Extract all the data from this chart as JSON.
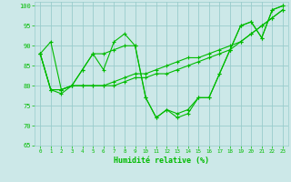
{
  "xlabel": "Humidité relative (%)",
  "xlim": [
    -0.5,
    23.5
  ],
  "ylim": [
    65,
    101
  ],
  "yticks": [
    65,
    70,
    75,
    80,
    85,
    90,
    95,
    100
  ],
  "xticks": [
    0,
    1,
    2,
    3,
    4,
    5,
    6,
    7,
    8,
    9,
    10,
    11,
    12,
    13,
    14,
    15,
    16,
    17,
    18,
    19,
    20,
    21,
    22,
    23
  ],
  "bg_color": "#cce8e8",
  "grid_color": "#99cccc",
  "line_color": "#00bb00",
  "series": [
    [
      88,
      91,
      79,
      80,
      84,
      88,
      84,
      91,
      93,
      90,
      77,
      72,
      74,
      72,
      73,
      77,
      77,
      83,
      89,
      95,
      96,
      92,
      99,
      100
    ],
    [
      88,
      79,
      78,
      80,
      84,
      88,
      88,
      89,
      90,
      90,
      77,
      72,
      74,
      73,
      74,
      77,
      77,
      83,
      89,
      95,
      96,
      92,
      99,
      100
    ],
    [
      88,
      79,
      79,
      80,
      80,
      80,
      80,
      80,
      81,
      82,
      82,
      83,
      83,
      84,
      85,
      86,
      87,
      88,
      89,
      91,
      93,
      95,
      97,
      99
    ],
    [
      88,
      79,
      79,
      80,
      80,
      80,
      80,
      81,
      82,
      83,
      83,
      84,
      85,
      86,
      87,
      87,
      88,
      89,
      90,
      91,
      93,
      95,
      97,
      99
    ]
  ]
}
